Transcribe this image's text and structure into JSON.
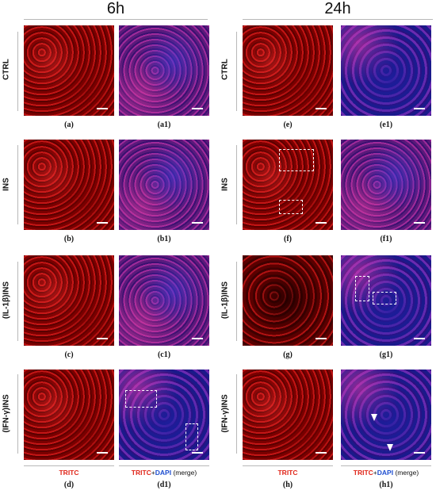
{
  "headers": {
    "left": "6h",
    "right": "24h"
  },
  "rows": [
    {
      "label": "CTRL",
      "captions": [
        "(a)",
        "(a1)",
        "(e)",
        "(e1)"
      ]
    },
    {
      "label": "INS",
      "captions": [
        "(b)",
        "(b1)",
        "(f)",
        "(f1)"
      ]
    },
    {
      "label": "(IL-1β)INS",
      "captions": [
        "(c)",
        "(c1)",
        "(g)",
        "(g1)"
      ]
    },
    {
      "label": "(IFN-γ)INS",
      "captions": [
        "(d)",
        "(d1)",
        "(h)",
        "(h1)"
      ]
    }
  ],
  "legend": {
    "tritc": "TRITC",
    "plus": "+",
    "dapi": "DAPI",
    "merge": "(merge)"
  },
  "colors": {
    "tritc": "#e0261a",
    "dapi": "#1f4fd0"
  }
}
